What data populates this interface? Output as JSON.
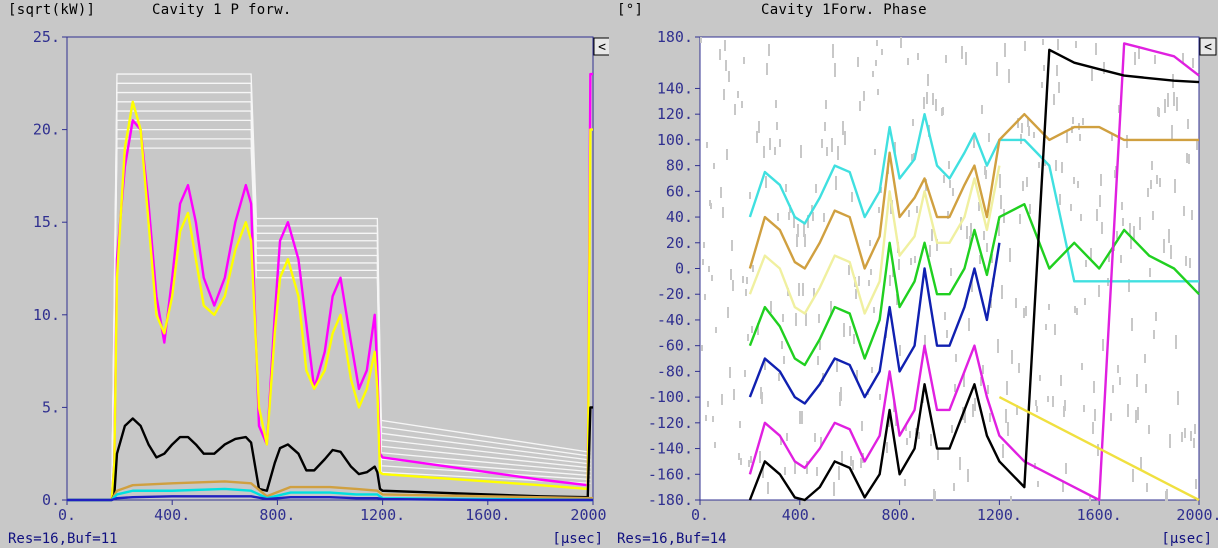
{
  "panels": [
    {
      "unit_label": "[sqrt(kW)]",
      "title": "Cavity 1 P forw.",
      "footer_res": "Res=16,Buf=11",
      "footer_unit": "[µsec]",
      "collapse_button": "<"
    },
    {
      "unit_label": "[°]",
      "title": "Cavity 1Forw. Phase",
      "footer_res": "Res=16,Buf=14",
      "footer_unit": "[µsec]",
      "collapse_button": "<"
    }
  ],
  "chart_data": [
    {
      "type": "line",
      "ylabel": "[sqrt(kW)]",
      "title": "Cavity 1 P forw.",
      "xlabel": "[µsec]",
      "xlim": [
        0,
        2000
      ],
      "ylim": [
        0,
        25
      ],
      "xticks": [
        "0.",
        "400.",
        "800.",
        "1200.",
        "1600.",
        "2000."
      ],
      "yticks": [
        "0.",
        "5.",
        "10.",
        "15.",
        "20.",
        "25."
      ],
      "xtick_values": [
        0,
        400,
        800,
        1200,
        1600,
        2000
      ],
      "ytick_values": [
        0,
        5,
        10,
        15,
        20,
        25
      ],
      "grid": false,
      "series": [
        {
          "color": "#ff00ff",
          "x": [
            0,
            170,
            180,
            190,
            220,
            250,
            280,
            310,
            340,
            370,
            400,
            430,
            460,
            490,
            520,
            560,
            600,
            640,
            680,
            700,
            730,
            760,
            790,
            810,
            840,
            880,
            910,
            940,
            980,
            1010,
            1040,
            1080,
            1110,
            1140,
            1170,
            1180,
            1190,
            1200,
            1400,
            1600,
            1800,
            1980,
            1990,
            2000
          ],
          "y": [
            0,
            0,
            2,
            13,
            18,
            20.5,
            20,
            16,
            11,
            8.5,
            12,
            16,
            17,
            15,
            12,
            10.5,
            12,
            15,
            17,
            16,
            4,
            3,
            10,
            14,
            15,
            13,
            9.5,
            6,
            8,
            11,
            12,
            8.5,
            6,
            7,
            10,
            7,
            2.5,
            2.3,
            1.9,
            1.5,
            1.1,
            0.8,
            23,
            23
          ]
        },
        {
          "color": "#ffff00",
          "x": [
            0,
            170,
            180,
            190,
            220,
            250,
            280,
            310,
            340,
            370,
            400,
            430,
            460,
            490,
            520,
            560,
            600,
            640,
            680,
            700,
            730,
            760,
            790,
            810,
            840,
            880,
            910,
            940,
            980,
            1010,
            1040,
            1080,
            1110,
            1140,
            1170,
            1180,
            1190,
            1200,
            1400,
            1600,
            1800,
            1980,
            1990,
            2000
          ],
          "y": [
            0,
            0,
            2,
            12,
            19,
            21.5,
            20,
            15,
            10,
            9,
            11,
            14.5,
            15.5,
            13,
            10.5,
            10,
            11,
            13.5,
            15,
            14,
            5,
            3,
            9,
            12,
            13,
            11,
            7,
            6,
            7,
            9,
            10,
            6.5,
            5,
            6,
            8,
            6,
            1.5,
            1.4,
            1.2,
            1,
            0.8,
            0.6,
            20,
            20
          ]
        },
        {
          "color": "#000000",
          "x": [
            0,
            170,
            180,
            190,
            220,
            250,
            280,
            310,
            340,
            370,
            400,
            430,
            460,
            490,
            520,
            560,
            600,
            640,
            680,
            700,
            730,
            760,
            790,
            810,
            840,
            880,
            910,
            940,
            980,
            1010,
            1040,
            1080,
            1110,
            1140,
            1170,
            1180,
            1190,
            1200,
            1400,
            1600,
            1800,
            1980,
            1990,
            2000
          ],
          "y": [
            0,
            0,
            0.3,
            2.5,
            4,
            4.4,
            4,
            3,
            2.3,
            2.5,
            3,
            3.4,
            3.4,
            3,
            2.5,
            2.5,
            3,
            3.3,
            3.4,
            3.1,
            0.6,
            0.5,
            2,
            2.8,
            3,
            2.5,
            1.6,
            1.6,
            2.2,
            2.7,
            2.6,
            1.8,
            1.4,
            1.5,
            1.8,
            1.5,
            0.6,
            0.5,
            0.4,
            0.3,
            0.2,
            0.15,
            5,
            5
          ]
        },
        {
          "color": "#d0a040",
          "x": [
            0,
            170,
            190,
            250,
            400,
            600,
            700,
            760,
            850,
            1000,
            1100,
            1180,
            1200,
            1600,
            2000
          ],
          "y": [
            0,
            0,
            0.5,
            0.8,
            0.9,
            1,
            0.9,
            0.2,
            0.7,
            0.7,
            0.6,
            0.5,
            0.3,
            0.2,
            0.1
          ]
        },
        {
          "color": "#00e0e0",
          "x": [
            0,
            170,
            190,
            250,
            400,
            600,
            700,
            760,
            850,
            1000,
            1100,
            1180,
            1200,
            1600,
            2000
          ],
          "y": [
            0,
            0,
            0.3,
            0.5,
            0.5,
            0.6,
            0.5,
            0.1,
            0.4,
            0.4,
            0.3,
            0.3,
            0.1,
            0.05,
            0
          ]
        },
        {
          "color": "#2020c0",
          "x": [
            0,
            170,
            190,
            250,
            400,
            600,
            700,
            760,
            850,
            1000,
            1100,
            1180,
            1200,
            1600,
            2000
          ],
          "y": [
            0,
            0,
            0.1,
            0.15,
            0.2,
            0.2,
            0.2,
            0.05,
            0.15,
            0.15,
            0.1,
            0.1,
            0.05,
            0,
            0
          ]
        }
      ]
    },
    {
      "type": "line",
      "ylabel": "[°]",
      "title": "Cavity 1Forw. Phase",
      "xlabel": "[µsec]",
      "xlim": [
        0,
        2000
      ],
      "ylim": [
        -180,
        180
      ],
      "xticks": [
        "0.",
        "400.",
        "800.",
        "1200.",
        "1600.",
        "2000."
      ],
      "yticks": [
        "180.",
        "140.",
        "120.",
        "100.",
        "80.",
        "60.",
        "40.",
        "20.",
        "0.",
        "-20.",
        "-40.",
        "-60.",
        "-80.",
        "-100.",
        "-120.",
        "-140.",
        "-160.",
        "-180."
      ],
      "xtick_values": [
        0,
        400,
        800,
        1200,
        1600,
        2000
      ],
      "ytick_values": [
        180,
        140,
        120,
        100,
        80,
        60,
        40,
        20,
        0,
        -20,
        -40,
        -60,
        -80,
        -100,
        -120,
        -140,
        -160,
        -180
      ],
      "grid": false,
      "series": [
        {
          "color": "#40e0e0",
          "x": [
            200,
            260,
            320,
            380,
            420,
            480,
            540,
            600,
            660,
            720,
            760,
            800,
            860,
            900,
            950,
            1000,
            1060,
            1100,
            1150,
            1200,
            1300,
            1400,
            1500,
            1600,
            1700,
            1800,
            1900,
            2000
          ],
          "y": [
            40,
            75,
            65,
            40,
            35,
            55,
            80,
            75,
            40,
            60,
            110,
            70,
            85,
            120,
            80,
            70,
            90,
            105,
            80,
            100,
            100,
            80,
            -10,
            -10,
            -10,
            -10,
            -10,
            -10
          ]
        },
        {
          "color": "#d0a040",
          "x": [
            200,
            260,
            320,
            380,
            420,
            480,
            540,
            600,
            660,
            720,
            760,
            800,
            860,
            900,
            950,
            1000,
            1060,
            1100,
            1150,
            1200,
            1300,
            1400,
            1500,
            1600,
            1700,
            1800,
            1900,
            2000
          ],
          "y": [
            0,
            40,
            30,
            5,
            0,
            20,
            45,
            40,
            0,
            25,
            90,
            40,
            55,
            70,
            40,
            40,
            65,
            80,
            40,
            100,
            120,
            100,
            110,
            110,
            100,
            100,
            100,
            100
          ]
        },
        {
          "color": "#f0f0a0",
          "x": [
            200,
            260,
            320,
            380,
            420,
            480,
            540,
            600,
            660,
            720,
            760,
            800,
            860,
            900,
            950,
            1000,
            1060,
            1100,
            1150,
            1200
          ],
          "y": [
            -20,
            10,
            0,
            -30,
            -35,
            -15,
            10,
            5,
            -35,
            -10,
            60,
            10,
            25,
            60,
            20,
            20,
            40,
            70,
            30,
            80
          ]
        },
        {
          "color": "#20d020",
          "x": [
            200,
            260,
            320,
            380,
            420,
            480,
            540,
            600,
            660,
            720,
            760,
            800,
            860,
            900,
            950,
            1000,
            1060,
            1100,
            1150,
            1200,
            1300,
            1400,
            1500,
            1600,
            1700,
            1800,
            1900,
            2000
          ],
          "y": [
            -60,
            -30,
            -45,
            -70,
            -75,
            -55,
            -30,
            -35,
            -70,
            -40,
            20,
            -30,
            -10,
            20,
            -20,
            -20,
            0,
            30,
            -5,
            40,
            50,
            0,
            20,
            0,
            30,
            10,
            0,
            -20
          ]
        },
        {
          "color": "#1020b0",
          "x": [
            200,
            260,
            320,
            380,
            420,
            480,
            540,
            600,
            660,
            720,
            760,
            800,
            860,
            900,
            950,
            1000,
            1060,
            1100,
            1150,
            1200
          ],
          "y": [
            -100,
            -70,
            -80,
            -100,
            -105,
            -90,
            -70,
            -75,
            -100,
            -80,
            -30,
            -80,
            -60,
            0,
            -60,
            -60,
            -30,
            0,
            -40,
            20
          ]
        },
        {
          "color": "#e020e0",
          "x": [
            200,
            260,
            320,
            380,
            420,
            480,
            540,
            600,
            660,
            720,
            760,
            800,
            860,
            900,
            950,
            1000,
            1060,
            1100,
            1150,
            1200,
            1300,
            1400,
            1500,
            1600,
            1700,
            1800,
            1900,
            2000
          ],
          "y": [
            -160,
            -120,
            -130,
            -150,
            -155,
            -140,
            -120,
            -125,
            -150,
            -130,
            -80,
            -130,
            -110,
            -60,
            -110,
            -110,
            -80,
            -60,
            -100,
            -130,
            -150,
            -160,
            -170,
            -180,
            175,
            170,
            165,
            150
          ]
        },
        {
          "color": "#000000",
          "x": [
            200,
            260,
            320,
            380,
            420,
            480,
            540,
            600,
            660,
            720,
            760,
            800,
            860,
            900,
            950,
            1000,
            1060,
            1100,
            1150,
            1200,
            1300,
            1400,
            1500,
            1600,
            1700,
            1800,
            1900,
            2000
          ],
          "y": [
            -180,
            -150,
            -160,
            -178,
            -180,
            -170,
            -150,
            -155,
            -178,
            -160,
            -110,
            -160,
            -140,
            -90,
            -140,
            -140,
            -110,
            -90,
            -130,
            -150,
            -170,
            170,
            160,
            155,
            150,
            148,
            146,
            145
          ]
        },
        {
          "color": "#f0e040",
          "x": [
            1200,
            1300,
            1400,
            1500,
            1600,
            1700,
            1800,
            1900,
            2000
          ],
          "y": [
            -100,
            -110,
            -120,
            -130,
            -140,
            -150,
            -160,
            -170,
            -180
          ]
        }
      ]
    }
  ]
}
